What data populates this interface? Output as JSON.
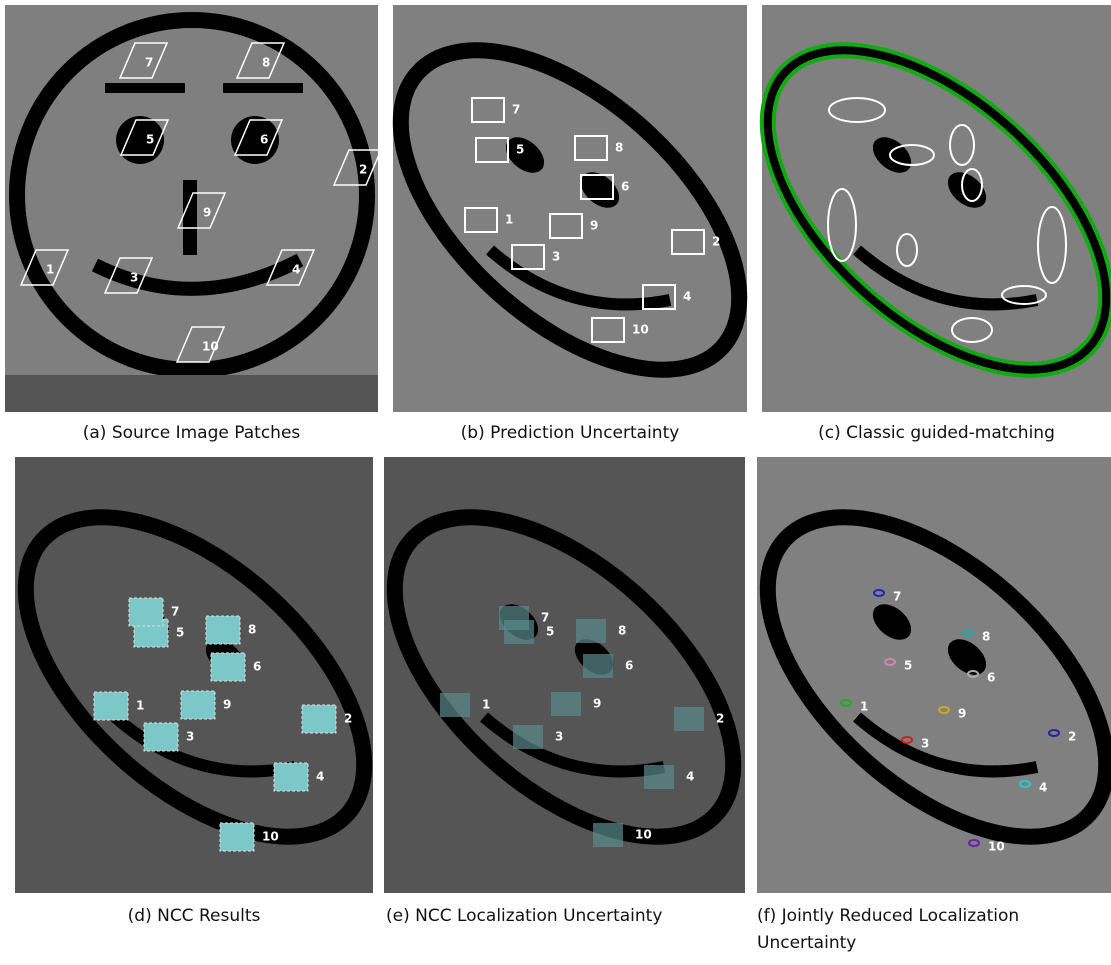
{
  "panels": [
    {
      "caption": "(a) Source Image Patches",
      "labels": [
        "1",
        "2",
        "3",
        "4",
        "5",
        "6",
        "7",
        "8",
        "9",
        "10"
      ]
    },
    {
      "caption": "(b) Prediction Uncertainty",
      "labels": [
        "1",
        "2",
        "3",
        "4",
        "5",
        "6",
        "7",
        "8",
        "9",
        "10"
      ]
    },
    {
      "caption": "(c) Classic guided-matching"
    },
    {
      "caption": "(d) NCC Results",
      "labels": [
        "1",
        "2",
        "3",
        "4",
        "5",
        "6",
        "7",
        "8",
        "9",
        "10"
      ]
    },
    {
      "caption": "(e) NCC Localization Uncertainty",
      "labels": [
        "1",
        "2",
        "3",
        "4",
        "5",
        "6",
        "7",
        "8",
        "9",
        "10"
      ]
    },
    {
      "caption": "(f) Jointly Reduced Localization Uncertainty",
      "labels": [
        "1",
        "2",
        "3",
        "4",
        "5",
        "6",
        "7",
        "8",
        "9",
        "10"
      ]
    }
  ]
}
